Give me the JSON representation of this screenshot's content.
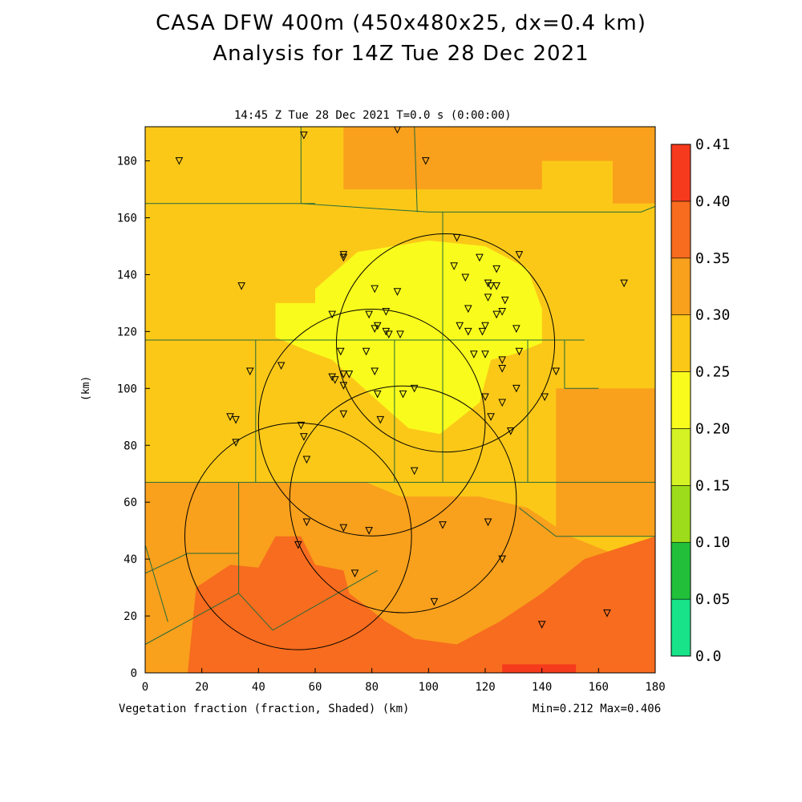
{
  "figure": {
    "title_line1": "CASA DFW 400m (450x480x25, dx=0.4 km)",
    "title_line2": "Analysis for 14Z Tue 28 Dec 2021",
    "subtitle": "14:45 Z Tue 28 Dec 2021    T=0.0 s (0:00:00)",
    "bottom_label": "Vegetation fraction (fraction, Shaded)  (km)",
    "minmax": "Min=0.212 Max=0.406",
    "y_unit": "(km)"
  },
  "colors": {
    "bin_0_00": "#19e388",
    "bin_0_05": "#22c03a",
    "bin_0_10": "#9ddc1a",
    "bin_0_15": "#d4f224",
    "bin_0_20": "#f9fb1c",
    "bin_0_25": "#fbc818",
    "bin_0_30": "#f9a01c",
    "bin_0_35": "#f76c1e",
    "bin_0_40": "#f63a1d",
    "county_lines": "#246b3a",
    "rings": "#000000"
  },
  "chart_data": {
    "type": "heatmap",
    "title": "CASA DFW 400m (450x480x25, dx=0.4 km)",
    "subtitle": "Analysis for 14Z Tue 28 Dec 2021",
    "xlabel": "(km)",
    "ylabel": "(km)",
    "xlim": [
      0,
      180
    ],
    "ylim": [
      0,
      192
    ],
    "x_ticks": [
      "0",
      "20",
      "40",
      "60",
      "80",
      "100",
      "120",
      "140",
      "160",
      "180"
    ],
    "y_ticks": [
      "0",
      "20",
      "40",
      "60",
      "80",
      "100",
      "120",
      "140",
      "160",
      "180"
    ],
    "colorbar": {
      "levels": [
        "0.0",
        "0.05",
        "0.10",
        "0.15",
        "0.20",
        "0.25",
        "0.30",
        "0.35",
        "0.40",
        "0.41"
      ],
      "bins": [
        {
          "lo": 0.0,
          "hi": 0.05
        },
        {
          "lo": 0.05,
          "hi": 0.1
        },
        {
          "lo": 0.1,
          "hi": 0.15
        },
        {
          "lo": 0.15,
          "hi": 0.2
        },
        {
          "lo": 0.2,
          "hi": 0.25
        },
        {
          "lo": 0.25,
          "hi": 0.3
        },
        {
          "lo": 0.3,
          "hi": 0.35
        },
        {
          "lo": 0.35,
          "hi": 0.4
        },
        {
          "lo": 0.4,
          "hi": 0.41
        }
      ]
    },
    "field_regions": [
      {
        "value": 0.28,
        "points": [
          [
            0,
            192
          ],
          [
            180,
            192
          ],
          [
            180,
            0
          ],
          [
            0,
            0
          ]
        ]
      },
      {
        "value": 0.32,
        "points": [
          [
            0,
            67
          ],
          [
            78,
            67
          ],
          [
            90,
            62
          ],
          [
            118,
            62
          ],
          [
            135,
            58
          ],
          [
            150,
            48
          ],
          [
            165,
            42
          ],
          [
            180,
            40
          ],
          [
            180,
            0
          ],
          [
            0,
            0
          ]
        ]
      },
      {
        "value": 0.32,
        "points": [
          [
            145,
            100
          ],
          [
            180,
            100
          ],
          [
            180,
            48
          ],
          [
            145,
            48
          ]
        ]
      },
      {
        "value": 0.32,
        "points": [
          [
            70,
            192
          ],
          [
            180,
            192
          ],
          [
            180,
            165
          ],
          [
            165,
            165
          ],
          [
            165,
            180
          ],
          [
            140,
            180
          ],
          [
            140,
            170
          ],
          [
            70,
            170
          ]
        ]
      },
      {
        "value": 0.37,
        "points": [
          [
            15,
            0
          ],
          [
            18,
            30
          ],
          [
            30,
            38
          ],
          [
            40,
            37
          ],
          [
            46,
            48
          ],
          [
            55,
            48
          ],
          [
            60,
            38
          ],
          [
            70,
            36
          ],
          [
            72,
            28
          ],
          [
            85,
            18
          ],
          [
            95,
            12
          ],
          [
            110,
            10
          ],
          [
            125,
            18
          ],
          [
            140,
            28
          ],
          [
            155,
            40
          ],
          [
            180,
            48
          ],
          [
            180,
            0
          ]
        ]
      },
      {
        "value": 0.4,
        "points": [
          [
            126,
            3
          ],
          [
            152,
            3
          ],
          [
            152,
            0
          ],
          [
            126,
            0
          ]
        ]
      },
      {
        "value": 0.23,
        "points": [
          [
            46,
            130
          ],
          [
            60,
            130
          ],
          [
            60,
            135
          ],
          [
            75,
            148
          ],
          [
            100,
            152
          ],
          [
            120,
            150
          ],
          [
            135,
            142
          ],
          [
            140,
            128
          ],
          [
            140,
            116
          ],
          [
            130,
            112
          ],
          [
            122,
            110
          ],
          [
            118,
            95
          ],
          [
            104,
            84
          ],
          [
            93,
            86
          ],
          [
            85,
            93
          ],
          [
            75,
            102
          ],
          [
            66,
            110
          ],
          [
            58,
            113
          ],
          [
            46,
            118
          ]
        ]
      }
    ],
    "county_lines": [
      [
        [
          0,
          67
        ],
        [
          180,
          67
        ]
      ],
      [
        [
          0,
          117
        ],
        [
          155,
          117
        ]
      ],
      [
        [
          0,
          165
        ],
        [
          60,
          165
        ]
      ],
      [
        [
          55,
          165
        ],
        [
          100,
          162
        ],
        [
          155,
          162
        ],
        [
          175,
          162
        ],
        [
          180,
          164
        ]
      ],
      [
        [
          55,
          192
        ],
        [
          55,
          165
        ]
      ],
      [
        [
          95,
          192
        ],
        [
          96,
          162
        ]
      ],
      [
        [
          105,
          162
        ],
        [
          105,
          67
        ]
      ],
      [
        [
          39,
          117
        ],
        [
          39,
          67
        ]
      ],
      [
        [
          88,
          117
        ],
        [
          88,
          67
        ]
      ],
      [
        [
          135,
          117
        ],
        [
          135,
          67
        ]
      ],
      [
        [
          148,
          117
        ],
        [
          148,
          100
        ]
      ],
      [
        [
          148,
          100
        ],
        [
          160,
          100
        ]
      ],
      [
        [
          132,
          58
        ],
        [
          145,
          48
        ],
        [
          180,
          48
        ]
      ],
      [
        [
          33,
          67
        ],
        [
          33,
          28
        ],
        [
          45,
          15
        ],
        [
          82,
          36
        ]
      ],
      [
        [
          33,
          42
        ],
        [
          15,
          42
        ],
        [
          0,
          35
        ]
      ],
      [
        [
          0,
          10
        ],
        [
          33,
          28
        ]
      ],
      [
        [
          0,
          45
        ],
        [
          8,
          18
        ]
      ]
    ],
    "radar_rings": [
      {
        "name": "ring-1",
        "x": 106,
        "y": 116,
        "r": 38.5
      },
      {
        "name": "ring-2",
        "x": 80,
        "y": 88,
        "r": 40
      },
      {
        "name": "ring-3",
        "x": 91,
        "y": 61,
        "r": 40
      },
      {
        "name": "ring-4",
        "x": 54,
        "y": 48,
        "r": 40
      }
    ],
    "stations": [
      [
        12,
        180
      ],
      [
        56,
        189
      ],
      [
        89,
        191
      ],
      [
        99,
        180
      ],
      [
        34,
        136
      ],
      [
        70,
        146
      ],
      [
        70,
        147
      ],
      [
        81,
        135
      ],
      [
        89,
        134
      ],
      [
        110,
        153
      ],
      [
        118,
        146
      ],
      [
        109,
        143
      ],
      [
        113,
        139
      ],
      [
        124,
        142
      ],
      [
        132,
        147
      ],
      [
        121,
        137
      ],
      [
        122,
        136
      ],
      [
        124,
        136
      ],
      [
        121,
        132
      ],
      [
        127,
        131
      ],
      [
        114,
        128
      ],
      [
        126,
        127
      ],
      [
        124,
        126
      ],
      [
        79,
        126
      ],
      [
        66,
        126
      ],
      [
        85,
        127
      ],
      [
        111,
        122
      ],
      [
        114,
        120
      ],
      [
        119,
        120
      ],
      [
        120,
        122
      ],
      [
        131,
        121
      ],
      [
        82,
        122
      ],
      [
        81,
        121
      ],
      [
        85,
        120
      ],
      [
        86,
        119
      ],
      [
        90,
        119
      ],
      [
        69,
        113
      ],
      [
        78,
        113
      ],
      [
        116,
        112
      ],
      [
        120,
        112
      ],
      [
        126,
        110
      ],
      [
        132,
        113
      ],
      [
        37,
        106
      ],
      [
        48,
        108
      ],
      [
        70,
        105
      ],
      [
        72,
        105
      ],
      [
        66,
        104
      ],
      [
        67,
        103
      ],
      [
        70,
        101
      ],
      [
        81,
        106
      ],
      [
        126,
        107
      ],
      [
        145,
        106
      ],
      [
        131,
        100
      ],
      [
        141,
        97
      ],
      [
        82,
        98
      ],
      [
        91,
        98
      ],
      [
        95,
        100
      ],
      [
        120,
        97
      ],
      [
        30,
        90
      ],
      [
        32,
        89
      ],
      [
        70,
        91
      ],
      [
        83,
        89
      ],
      [
        122,
        90
      ],
      [
        126,
        95
      ],
      [
        129,
        85
      ],
      [
        55,
        87
      ],
      [
        56,
        83
      ],
      [
        32,
        81
      ],
      [
        57,
        75
      ],
      [
        95,
        71
      ],
      [
        57,
        53
      ],
      [
        70,
        51
      ],
      [
        79,
        50
      ],
      [
        105,
        52
      ],
      [
        121,
        53
      ],
      [
        54,
        45
      ],
      [
        74,
        35
      ],
      [
        102,
        25
      ],
      [
        126,
        40
      ],
      [
        140,
        17
      ],
      [
        163,
        21
      ],
      [
        169,
        137
      ]
    ]
  }
}
